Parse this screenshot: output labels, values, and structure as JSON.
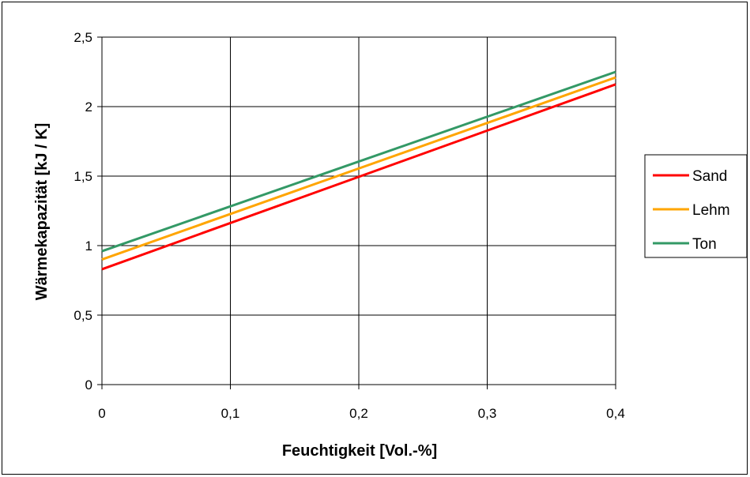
{
  "chart_data": {
    "type": "line",
    "xlabel": "Feuchtigkeit [Vol.-%]",
    "ylabel": "Wärmekapazität [kJ / K]",
    "xlim": [
      0,
      0.4
    ],
    "ylim": [
      0,
      2.5
    ],
    "x_ticks": [
      "0",
      "0,1",
      "0,2",
      "0,3",
      "0,4"
    ],
    "y_ticks": [
      "0",
      "0,5",
      "1",
      "1,5",
      "2",
      "2,5"
    ],
    "grid": true,
    "legend_position": "right",
    "x": [
      0,
      0.4
    ],
    "series": [
      {
        "name": "Sand",
        "color": "#ff0000",
        "values": [
          0.83,
          2.16
        ]
      },
      {
        "name": "Lehm",
        "color": "#ffa500",
        "values": [
          0.9,
          2.21
        ]
      },
      {
        "name": "Ton",
        "color": "#339966",
        "values": [
          0.96,
          2.25
        ]
      }
    ]
  }
}
